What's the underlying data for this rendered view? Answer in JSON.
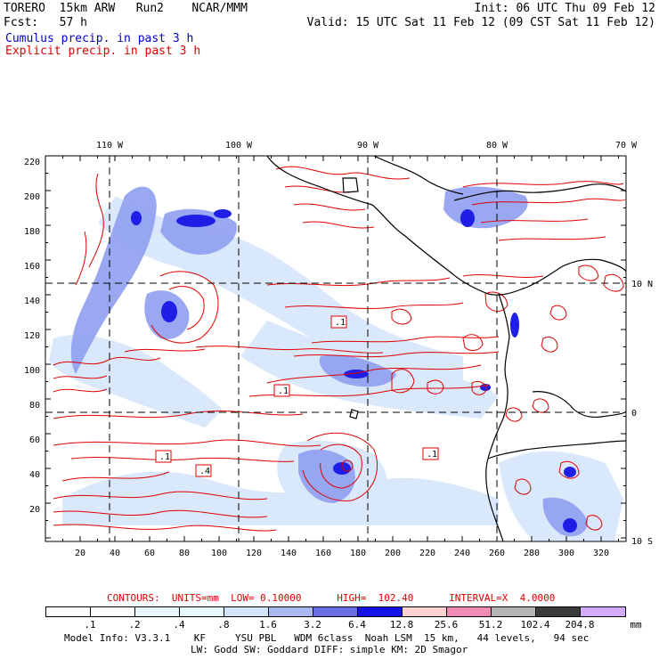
{
  "header": {
    "model": "TORERO  15km ARW   Run2    NCAR/MMM",
    "init": "Init: 06 UTC Thu 09 Feb 12",
    "fcst": "Fcst:   57 h",
    "valid": "Valid: 15 UTC Sat 11 Feb 12 (09 CST Sat 11 Feb 12)",
    "cumulus": "Cumulus precip. in past 3 h",
    "explicit": "Explicit precip. in past 3 h"
  },
  "colors": {
    "cumulus_title": "#0000c8",
    "explicit_title": "#e00000",
    "contour": "#e00000",
    "coast": "#000000"
  },
  "map": {
    "lon_labels": [
      "110 W",
      "100 W",
      "90 W",
      "80 W",
      "70 W"
    ],
    "lat_labels": [
      "10 N",
      "0",
      "10 S"
    ],
    "x_ticks": [
      "20",
      "40",
      "60",
      "80",
      "100",
      "120",
      "140",
      "160",
      "180",
      "200",
      "220",
      "240",
      "260",
      "280",
      "300",
      "320"
    ],
    "y_ticks": [
      "220",
      "200",
      "180",
      "160",
      "140",
      "120",
      "100",
      "80",
      "60",
      "40",
      "20"
    ],
    "contour_labels": [
      ".1",
      ".1",
      ".1",
      ".4",
      ".1"
    ]
  },
  "footer": {
    "contours": "CONTOURS:  UNITS=mm  LOW= 0.10000      HIGH=  102.40      INTERVAL=X  4.0000",
    "units": "mm",
    "model_info": "Model Info: V3.3.1    KF     YSU PBL   WDM 6class  Noah LSM  15 km,   44 levels,   94 sec",
    "model_info2": "LW: Godd SW: Goddard DIFF: simple KM: 2D Smagor"
  },
  "colorbar": {
    "labels": [
      ".1",
      ".2",
      ".4",
      ".8",
      "1.6",
      "3.2",
      "6.4",
      "12.8",
      "25.6",
      "51.2",
      "102.4",
      "204.8"
    ],
    "colors": [
      "#ffffff",
      "#ffffff",
      "#e8f6ff",
      "#e6fbff",
      "#d3e3fa",
      "#a9b8f0",
      "#6a6fe6",
      "#1414e6",
      "#ffd2d2",
      "#f08cb4",
      "#b4b4b4",
      "#3c3c3c",
      "#d2aaff"
    ]
  }
}
